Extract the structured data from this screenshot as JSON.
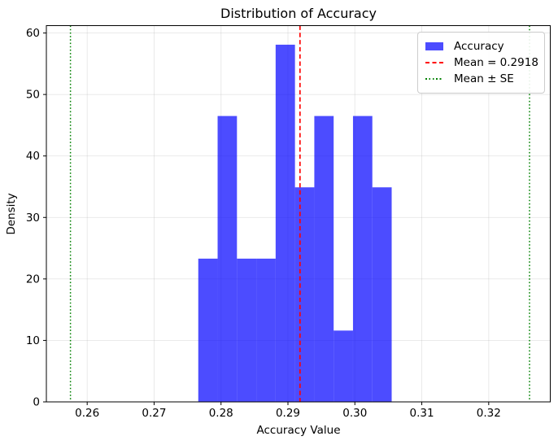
{
  "chart_data": {
    "type": "bar",
    "subtype": "histogram",
    "title": "Distribution of Accuracy",
    "xlabel": "Accuracy Value",
    "ylabel": "Density",
    "xlim": [
      0.2539,
      0.3292
    ],
    "ylim": [
      0,
      61.2
    ],
    "grid": {
      "on": true,
      "color": "#b0b0b0",
      "alpha": 0.3
    },
    "xticks": [
      {
        "v": 0.26,
        "label": "0.26"
      },
      {
        "v": 0.27,
        "label": "0.27"
      },
      {
        "v": 0.28,
        "label": "0.28"
      },
      {
        "v": 0.29,
        "label": "0.29"
      },
      {
        "v": 0.3,
        "label": "0.30"
      },
      {
        "v": 0.31,
        "label": "0.31"
      },
      {
        "v": 0.32,
        "label": "0.32"
      }
    ],
    "yticks": [
      {
        "v": 0,
        "label": "0"
      },
      {
        "v": 10,
        "label": "10"
      },
      {
        "v": 20,
        "label": "20"
      },
      {
        "v": 30,
        "label": "30"
      },
      {
        "v": 40,
        "label": "40"
      },
      {
        "v": 50,
        "label": "50"
      },
      {
        "v": 60,
        "label": "60"
      }
    ],
    "histogram": {
      "bin_start": 0.2766,
      "bin_width": 0.00289,
      "densities": [
        23.3,
        46.5,
        23.3,
        23.3,
        58.1,
        34.9,
        46.5,
        11.6,
        46.5,
        34.9
      ],
      "color": "#0000ff",
      "alpha": 0.7
    },
    "mean_line": {
      "value": 0.2918,
      "color": "#ff0000",
      "style": "dashed"
    },
    "se_lines": {
      "values": [
        0.2575,
        0.3261
      ],
      "color": "#008000",
      "style": "dotted"
    },
    "legend": {
      "position": "upper right",
      "entries": [
        {
          "swatch": "patch",
          "color": "#0000ff",
          "alpha": 0.7,
          "label": "Accuracy"
        },
        {
          "swatch": "dashed-line",
          "color": "#ff0000",
          "alpha": 1.0,
          "label": "Mean = 0.2918"
        },
        {
          "swatch": "dotted-line",
          "color": "#008000",
          "alpha": 1.0,
          "label": "Mean ± SE"
        }
      ]
    }
  }
}
